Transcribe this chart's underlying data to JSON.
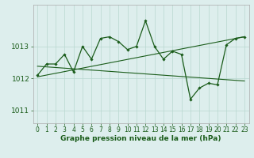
{
  "x": [
    0,
    1,
    2,
    3,
    4,
    5,
    6,
    7,
    8,
    9,
    10,
    11,
    12,
    13,
    14,
    15,
    16,
    17,
    18,
    19,
    20,
    21,
    22,
    23
  ],
  "s1": [
    1012.1,
    1012.45,
    1012.45,
    1012.75,
    1012.2,
    1013.0,
    1012.6,
    1013.25,
    1013.3,
    1013.15,
    1012.9,
    1013.0,
    1013.8,
    1013.0,
    1012.6,
    1012.85,
    1012.75,
    1011.35,
    1011.7,
    1011.85,
    1011.8,
    1013.05,
    1013.25,
    1013.3
  ],
  "trend1_x": [
    0,
    23
  ],
  "trend1_y": [
    1012.05,
    1013.3
  ],
  "trend2_x": [
    0,
    23
  ],
  "trend2_y": [
    1012.38,
    1011.92
  ],
  "background_color": "#ddeeed",
  "line_color": "#1a5c1a",
  "grid_color": "#b8d8d0",
  "ylabel_ticks": [
    1011,
    1012,
    1013
  ],
  "xlabel": "Graphe pression niveau de la mer (hPa)",
  "ylim": [
    1010.6,
    1014.3
  ],
  "xlim_min": -0.5,
  "xlim_max": 23.5,
  "xlabel_fontsize": 6.5,
  "tick_fontsize": 6
}
